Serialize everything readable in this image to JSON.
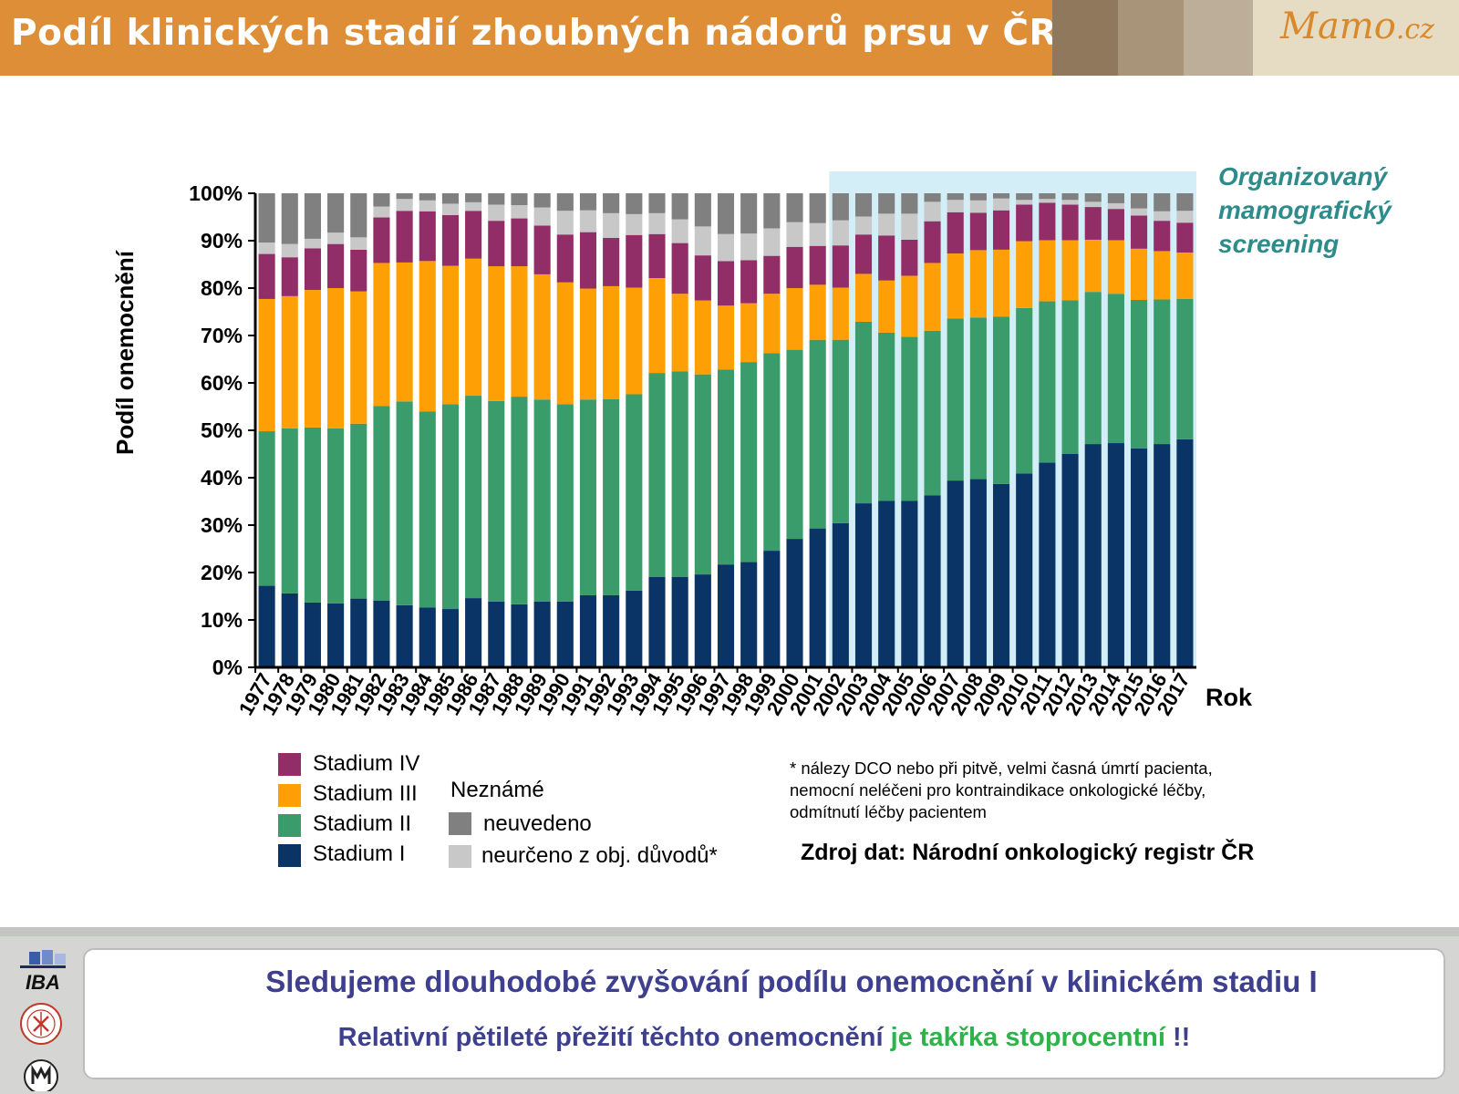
{
  "header": {
    "title": "Podíl klinických stadií zhoubných nádorů prsu v ČR",
    "logo_text": "Mamo",
    "logo_suffix": ".cz",
    "stripe_colors": [
      "#8f785c",
      "#a89479",
      "#bcae98"
    ]
  },
  "chart_data": {
    "type": "bar",
    "stacked": true,
    "ylabel": "Podíl onemocnění",
    "xlabel": "Rok",
    "ylim": [
      0,
      100
    ],
    "yticks": [
      "0%",
      "10%",
      "20%",
      "30%",
      "40%",
      "50%",
      "60%",
      "70%",
      "80%",
      "90%",
      "100%"
    ],
    "grid": false,
    "highlight": {
      "from": "2002",
      "to": "2017",
      "label": [
        "Organizovaný",
        "mamografický",
        "screening"
      ],
      "color": "#d4eef8"
    },
    "categories": [
      "1977",
      "1978",
      "1979",
      "1980",
      "1981",
      "1982",
      "1983",
      "1984",
      "1985",
      "1986",
      "1987",
      "1988",
      "1989",
      "1990",
      "1991",
      "1992",
      "1993",
      "1994",
      "1995",
      "1996",
      "1997",
      "1998",
      "1999",
      "2000",
      "2001",
      "2002",
      "2003",
      "2004",
      "2005",
      "2006",
      "2007",
      "2008",
      "2009",
      "2010",
      "2011",
      "2012",
      "2013",
      "2014",
      "2015",
      "2016",
      "2017"
    ],
    "series": [
      {
        "name": "Stadium I",
        "color": "#0b3466",
        "values": [
          17.2,
          15.6,
          13.7,
          13.5,
          14.5,
          14.1,
          13.1,
          12.6,
          12.3,
          14.6,
          13.9,
          13.3,
          13.9,
          13.9,
          15.2,
          15.2,
          16.2,
          19.1,
          19.1,
          19.6,
          21.7,
          22.2,
          24.6,
          27.1,
          29.3,
          30.4,
          34.6,
          35.1,
          35.1,
          36.3,
          39.4,
          39.7,
          38.7,
          40.9,
          43.2,
          45.0,
          47.1,
          47.3,
          46.2,
          47.1,
          48.1
        ]
      },
      {
        "name": "Stadium II",
        "color": "#3a9c6b",
        "values": [
          32.6,
          34.8,
          36.9,
          36.9,
          36.9,
          41.0,
          43.0,
          41.4,
          43.2,
          42.7,
          42.3,
          43.8,
          42.6,
          41.6,
          41.3,
          41.4,
          41.4,
          43.0,
          43.3,
          42.2,
          41.1,
          42.2,
          41.7,
          39.9,
          39.8,
          38.7,
          38.3,
          35.5,
          34.6,
          34.7,
          34.2,
          34.1,
          35.3,
          34.9,
          34.0,
          32.4,
          32.1,
          31.5,
          31.3,
          30.5,
          29.6
        ]
      },
      {
        "name": "Stadium III",
        "color": "#ff9f06",
        "values": [
          27.9,
          27.9,
          29.0,
          29.6,
          27.9,
          30.2,
          29.3,
          31.7,
          29.2,
          28.9,
          28.4,
          27.5,
          26.4,
          25.7,
          23.4,
          23.8,
          22.5,
          20.0,
          16.4,
          15.6,
          13.5,
          12.4,
          12.5,
          13.0,
          11.6,
          11.0,
          10.1,
          11.0,
          12.9,
          14.3,
          13.7,
          14.2,
          14.1,
          14.1,
          12.9,
          12.7,
          11.0,
          11.3,
          10.8,
          10.2,
          9.8
        ]
      },
      {
        "name": "Stadium IV",
        "color": "#912e67",
        "values": [
          9.5,
          8.2,
          8.8,
          9.3,
          8.8,
          9.6,
          10.9,
          10.5,
          10.7,
          10.1,
          9.6,
          10.1,
          10.3,
          10.1,
          11.9,
          10.2,
          11.1,
          9.3,
          10.7,
          9.5,
          9.4,
          9.1,
          8.0,
          8.7,
          8.2,
          8.9,
          8.3,
          9.5,
          7.6,
          8.8,
          8.7,
          7.9,
          8.3,
          7.7,
          7.9,
          7.5,
          6.9,
          6.6,
          7.0,
          6.4,
          6.3
        ]
      },
      {
        "name": "neurčeno z obj. důvodů*",
        "color": "#c8c8c8",
        "values": [
          2.4,
          2.8,
          2.0,
          2.4,
          2.6,
          2.3,
          2.5,
          2.3,
          2.4,
          1.8,
          3.4,
          2.8,
          3.8,
          5.0,
          4.6,
          5.2,
          4.4,
          4.4,
          5.0,
          6.1,
          5.7,
          5.6,
          5.8,
          5.2,
          4.8,
          5.3,
          3.8,
          4.6,
          5.5,
          4.1,
          2.6,
          2.6,
          2.5,
          1.0,
          0.8,
          1.0,
          1.1,
          1.2,
          1.5,
          2.0,
          2.5
        ]
      },
      {
        "name": "neuvedeno",
        "color": "#808080",
        "values": [
          10.4,
          10.7,
          9.6,
          8.3,
          9.3,
          2.8,
          1.2,
          1.5,
          2.2,
          1.9,
          2.4,
          2.5,
          3.0,
          3.7,
          3.6,
          4.2,
          4.4,
          4.2,
          5.5,
          7.0,
          8.6,
          8.5,
          7.4,
          6.1,
          6.3,
          5.7,
          4.9,
          4.3,
          4.3,
          1.8,
          1.4,
          1.5,
          1.1,
          1.4,
          1.2,
          1.4,
          1.8,
          2.1,
          3.2,
          3.8,
          3.7
        ]
      }
    ],
    "legend": {
      "stages": [
        "Stadium IV",
        "Stadium III",
        "Stadium II",
        "Stadium I"
      ],
      "unknown_title": "Neznámé",
      "unknown": [
        "neuvedeno",
        "neurčeno z obj. důvodů*"
      ]
    }
  },
  "notes": {
    "footnote": "* nálezy DCO nebo při pitvě, velmi časná úmrtí pacienta, nemocní neléčeni pro kontraindikace onkologické léčby, odmítnutí léčby pacientem",
    "source": "Zdroj dat: Národní onkologický registr ČR"
  },
  "footer": {
    "line1": "Sledujeme dlouhodobé zvyšování podílu onemocnění v klinickém stadiu I",
    "line2_a": "Relativní pětileté přežití těchto onemocnění ",
    "line2_b": "je takřka stoprocentní",
    "line2_c": " !!",
    "logo_iba": "IBA"
  }
}
